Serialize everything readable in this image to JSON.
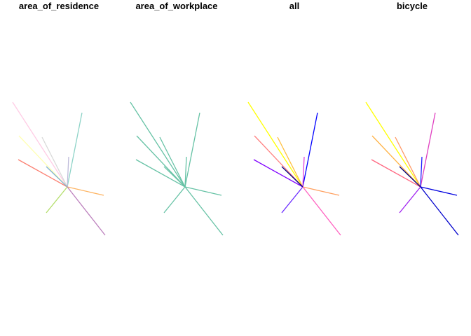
{
  "panels": [
    {
      "title": "area_of_residence",
      "colors": [
        "#FFCCE5",
        "#8DD3C7",
        "#D9D9D9",
        "#FFFFB3",
        "#BEBADA",
        "#FB8072",
        "#80B1D3",
        "#FDB462",
        "#B3DE69",
        "#BC80BD"
      ]
    },
    {
      "title": "area_of_workplace",
      "colors": [
        "#66C2A5",
        "#66C2A5",
        "#66C2A5",
        "#66C2A5",
        "#66C2A5",
        "#66C2A5",
        "#66C2A5",
        "#66C2A5",
        "#66C2A5",
        "#66C2A5"
      ]
    },
    {
      "title": "all",
      "colors": [
        "#FFFF00",
        "#0000FF",
        "#FFC040",
        "#FF8080",
        "#E040E0",
        "#8000FF",
        "#000080",
        "#FFA060",
        "#6A2AFF",
        "#FF60C0"
      ]
    },
    {
      "title": "bicycle",
      "colors": [
        "#FFFF00",
        "#E040C0",
        "#FF9966",
        "#FFB347",
        "#2020FF",
        "#FF6680",
        "#000080",
        "#0000E0",
        "#A020F0",
        "#0000CC"
      ]
    }
  ]
}
